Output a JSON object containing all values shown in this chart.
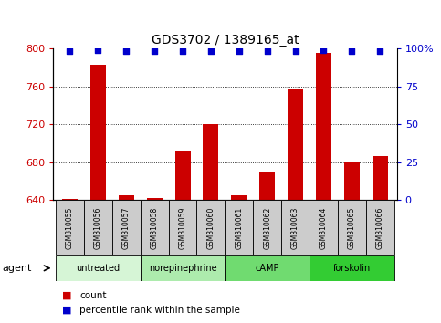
{
  "title": "GDS3702 / 1389165_at",
  "samples": [
    "GSM310055",
    "GSM310056",
    "GSM310057",
    "GSM310058",
    "GSM310059",
    "GSM310060",
    "GSM310061",
    "GSM310062",
    "GSM310063",
    "GSM310064",
    "GSM310065",
    "GSM310066"
  ],
  "counts": [
    641,
    783,
    645,
    642,
    691,
    720,
    645,
    670,
    757,
    795,
    681,
    687
  ],
  "percentiles": [
    98,
    99,
    98,
    98,
    98,
    98,
    98,
    98,
    98,
    99,
    98,
    98
  ],
  "ymin": 640,
  "ymax": 800,
  "yticks": [
    640,
    680,
    720,
    760,
    800
  ],
  "right_yticks_vals": [
    0,
    25,
    50,
    75,
    100
  ],
  "right_yticks_labels": [
    "0",
    "25",
    "50",
    "75",
    "100%"
  ],
  "agents": [
    {
      "label": "untreated",
      "start": 0,
      "end": 3,
      "color": "#d6f5d6"
    },
    {
      "label": "norepinephrine",
      "start": 3,
      "end": 6,
      "color": "#adebad"
    },
    {
      "label": "cAMP",
      "start": 6,
      "end": 9,
      "color": "#70db70"
    },
    {
      "label": "forskolin",
      "start": 9,
      "end": 12,
      "color": "#33cc33"
    }
  ],
  "bar_color": "#cc0000",
  "dot_color": "#0000cc",
  "bar_width": 0.55,
  "agent_label": "agent",
  "legend_count_label": "count",
  "legend_percentile_label": "percentile rank within the sample",
  "background_color": "#ffffff",
  "sample_box_color": "#cccccc",
  "left_tick_color": "#cc0000",
  "right_tick_color": "#0000cc"
}
